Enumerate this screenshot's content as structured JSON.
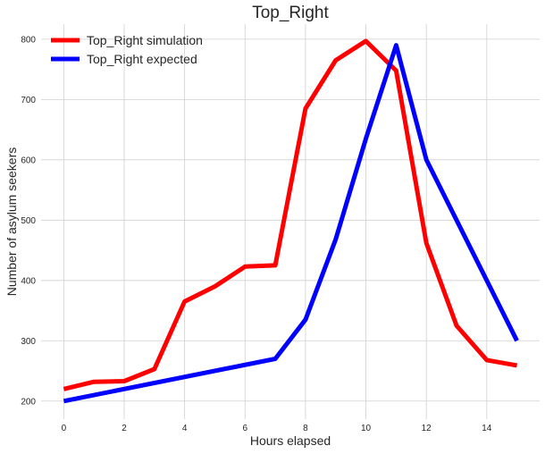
{
  "chart_data": {
    "type": "line",
    "title": "Top_Right",
    "xlabel": "Hours elapsed",
    "ylabel": "Number of asylum seekers",
    "xlim": [
      -0.75,
      15.75
    ],
    "ylim": [
      170,
      825
    ],
    "xticks": [
      0,
      2,
      4,
      6,
      8,
      10,
      12,
      14
    ],
    "yticks": [
      200,
      300,
      400,
      500,
      600,
      700,
      800
    ],
    "grid": true,
    "legend_position": "top-left",
    "series": [
      {
        "name": "Top_Right simulation",
        "color": "#ff0000",
        "x": [
          0,
          1,
          2,
          3,
          4,
          5,
          6,
          7,
          8,
          9,
          10,
          11,
          12,
          13,
          14,
          15
        ],
        "y": [
          220,
          232,
          233,
          253,
          365,
          390,
          423,
          425,
          685,
          765,
          797,
          748,
          462,
          325,
          268,
          259
        ]
      },
      {
        "name": "Top_Right expected",
        "color": "#0000ff",
        "x": [
          0,
          7,
          8,
          9,
          10,
          11,
          12,
          15
        ],
        "y": [
          200,
          270,
          335,
          468,
          635,
          790,
          600,
          300
        ]
      }
    ]
  }
}
